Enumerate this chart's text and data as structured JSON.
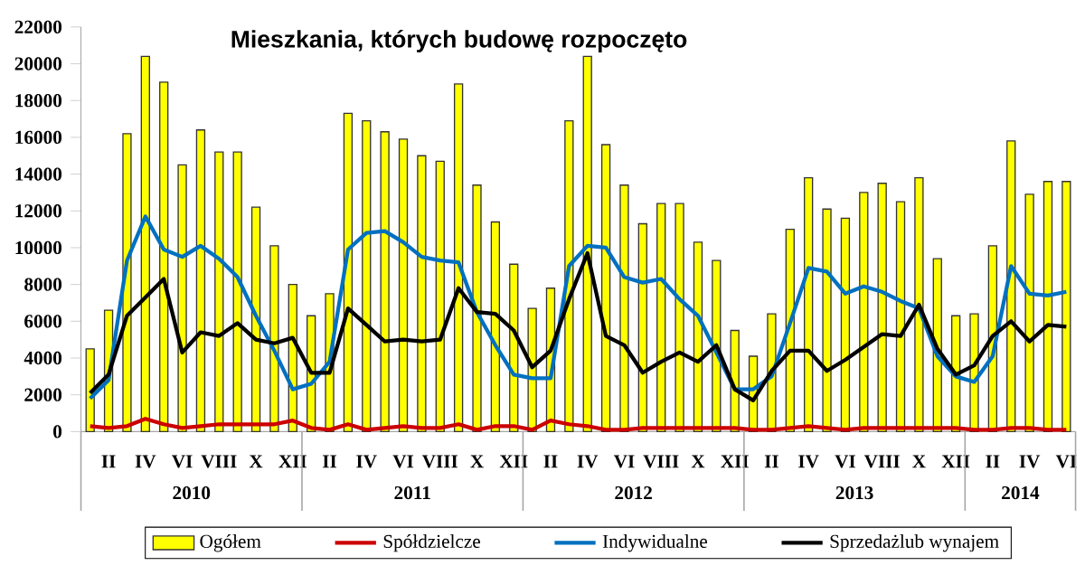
{
  "chart_data": {
    "type": "bar",
    "title": "Mieszkania, których budowę rozpoczęto",
    "categories": [
      null,
      "II",
      null,
      "IV",
      null,
      "VI",
      null,
      "VIII",
      null,
      "X",
      null,
      "XII",
      null,
      "II",
      null,
      "IV",
      null,
      "VI",
      null,
      "VIII",
      null,
      "X",
      null,
      "XII",
      null,
      "II",
      null,
      "IV",
      null,
      "VI",
      null,
      "VIII",
      null,
      "X",
      null,
      "XII",
      null,
      "II",
      null,
      "IV",
      null,
      "VI",
      null,
      "VIII",
      null,
      "X",
      null,
      "XII",
      null,
      "II",
      null,
      "IV",
      null,
      "VI"
    ],
    "annotations": [
      "2010",
      "2011",
      "2012",
      "2013",
      "2014"
    ],
    "ylim": [
      0,
      22000
    ],
    "yticks": [
      0,
      2000,
      4000,
      6000,
      8000,
      10000,
      12000,
      14000,
      16000,
      18000,
      20000,
      22000
    ],
    "legend": "bottom",
    "series": [
      {
        "name": "Ogółem",
        "color": "#ffff00",
        "values": [
          4500,
          6600,
          16200,
          20400,
          19000,
          14500,
          16400,
          15200,
          15200,
          12200,
          10100,
          8000,
          6300,
          7500,
          17300,
          16900,
          16300,
          15900,
          15000,
          14700,
          18900,
          13400,
          11400,
          9100,
          6700,
          7800,
          16900,
          20400,
          15600,
          13400,
          11300,
          12400,
          12400,
          10300,
          9300,
          5500,
          4100,
          6400,
          11000,
          13800,
          12100,
          11600,
          13000,
          13500,
          12500,
          13800,
          9400,
          6300,
          6400,
          10100,
          15800,
          12900,
          13600,
          13600
        ]
      },
      {
        "name": "Spółdzielcze",
        "type": "line",
        "color": "#cc0000",
        "values": [
          300,
          200,
          300,
          700,
          400,
          200,
          300,
          400,
          400,
          400,
          400,
          600,
          200,
          100,
          400,
          100,
          200,
          300,
          200,
          200,
          400,
          100,
          300,
          300,
          100,
          600,
          400,
          300,
          100,
          100,
          200,
          200,
          200,
          200,
          200,
          200,
          100,
          100,
          200,
          300,
          200,
          100,
          200,
          200,
          200,
          200,
          200,
          200,
          100,
          100,
          200,
          200,
          100,
          100
        ]
      },
      {
        "name": "Indywidualne",
        "type": "line",
        "color": "#0070c0",
        "values": [
          1800,
          2800,
          9300,
          11700,
          9900,
          9500,
          10100,
          9400,
          8400,
          6300,
          4400,
          2300,
          2600,
          3800,
          9900,
          10800,
          10900,
          10300,
          9500,
          9300,
          9200,
          6500,
          4700,
          3100,
          2900,
          2900,
          9000,
          10100,
          10000,
          8400,
          8100,
          8300,
          7200,
          6300,
          4300,
          2300,
          2300,
          3000,
          5900,
          8900,
          8700,
          7500,
          7900,
          7600,
          7100,
          6700,
          4100,
          3000,
          2700,
          4100,
          9000,
          7500,
          7400,
          7600
        ]
      },
      {
        "name": "Sprzedażlub wynajem",
        "type": "line",
        "color": "#000000",
        "values": [
          2100,
          3100,
          6300,
          7300,
          8300,
          4300,
          5400,
          5200,
          5900,
          5000,
          4800,
          5100,
          3200,
          3200,
          6700,
          5800,
          4900,
          5000,
          4900,
          5000,
          7800,
          6500,
          6400,
          5500,
          3500,
          4400,
          7200,
          9700,
          5200,
          4700,
          3200,
          3800,
          4300,
          3800,
          4700,
          2300,
          1700,
          3300,
          4400,
          4400,
          3300,
          3900,
          4600,
          5300,
          5200,
          6900,
          4500,
          3100,
          3600,
          5200,
          6000,
          4900,
          5800,
          5700
        ]
      }
    ]
  }
}
